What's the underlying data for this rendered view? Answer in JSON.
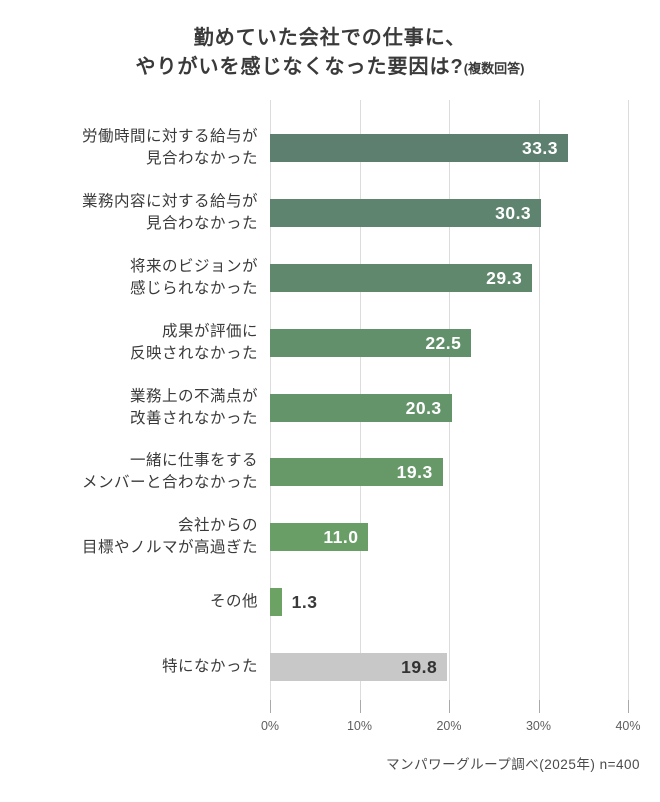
{
  "title": {
    "line1": "勤めていた会社での仕事に、",
    "line2": "やりがいを感じなくなった要因は?",
    "suffix": "(複数回答)"
  },
  "footer": {
    "source": "マンパワーグループ調べ(2025年) n=400"
  },
  "colors": {
    "grid": "#dcdcdc",
    "tick": "#a9a9a9",
    "text_dark": "#3a3a3a",
    "bar_green_dark": "#5c7f6f",
    "bar_green_light": "#6ca264",
    "bar_gray": "#c8c8c8"
  },
  "chart_data": {
    "type": "bar",
    "orientation": "horizontal",
    "title": "勤めていた会社での仕事に、やりがいを感じなくなった要因は?(複数回答)",
    "xlabel": "",
    "ylabel": "",
    "xlim": [
      0,
      40
    ],
    "grid": true,
    "categories": [
      [
        "労働時間に対する給与が",
        "見合わなかった"
      ],
      [
        "業務内容に対する給与が",
        "見合わなかった"
      ],
      [
        "将来のビジョンが",
        "感じられなかった"
      ],
      [
        "成果が評価に",
        "反映されなかった"
      ],
      [
        "業務上の不満点が",
        "改善されなかった"
      ],
      [
        "一緒に仕事をする",
        "メンバーと合わなかった"
      ],
      [
        "会社からの",
        "目標やノルマが高過ぎた"
      ],
      [
        "その他"
      ],
      [
        "特になかった"
      ]
    ],
    "values": [
      33.3,
      30.3,
      29.3,
      22.5,
      20.3,
      19.3,
      11.0,
      1.3,
      19.8
    ],
    "value_labels": [
      "33.3",
      "30.3",
      "29.3",
      "22.5",
      "20.3",
      "19.3",
      "11.0",
      "1.3",
      "19.8"
    ],
    "bar_colors": [
      "#5c7f6f",
      "#5e836e",
      "#5f886d",
      "#62906b",
      "#649469",
      "#669868",
      "#699e66",
      "#6ca264",
      "#c8c8c8"
    ],
    "value_inside": [
      true,
      true,
      true,
      true,
      true,
      true,
      true,
      false,
      true
    ],
    "value_colors": [
      "#ffffff",
      "#ffffff",
      "#ffffff",
      "#ffffff",
      "#ffffff",
      "#ffffff",
      "#ffffff",
      "#3a3a3a",
      "#333333"
    ],
    "x_tick_values": [
      0,
      10,
      20,
      30,
      40
    ],
    "x_tick_labels": [
      "0%",
      "10%",
      "20%",
      "30%",
      "40%"
    ]
  }
}
